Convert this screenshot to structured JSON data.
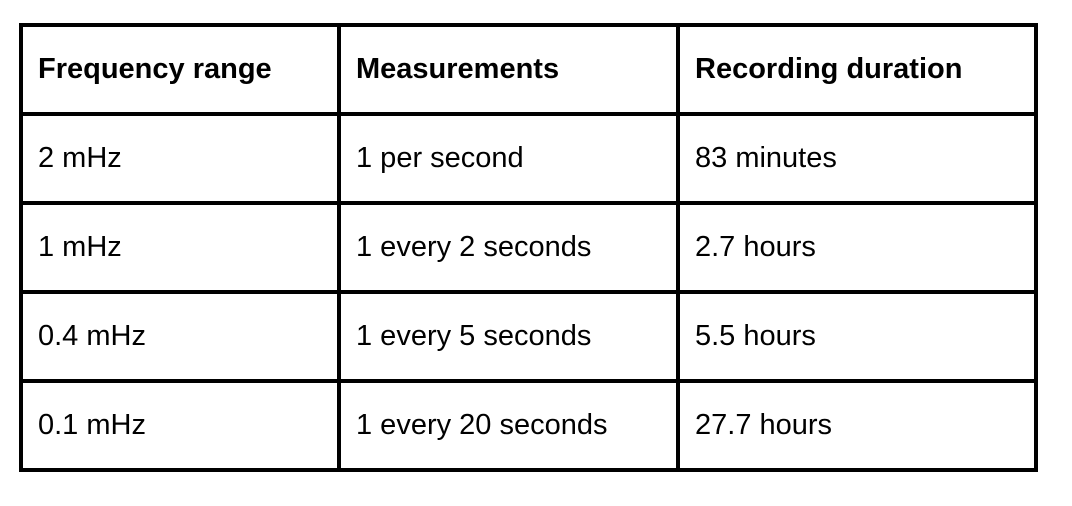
{
  "table": {
    "headers": [
      "Frequency range",
      "Measurements",
      "Recording duration"
    ],
    "rows": [
      [
        "2 mHz",
        "1 per second",
        "83 minutes"
      ],
      [
        "1 mHz",
        "1 every 2 seconds",
        "2.7 hours"
      ],
      [
        "0.4 mHz",
        "1 every 5 seconds",
        "5.5 hours"
      ],
      [
        "0.1 mHz",
        "1 every 20 seconds",
        "27.7 hours"
      ]
    ]
  }
}
